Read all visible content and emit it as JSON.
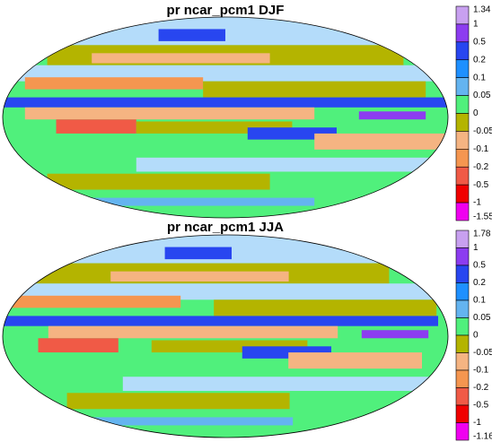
{
  "maps": [
    {
      "title": "pr ncar_pcm1 DJF",
      "colorbar": {
        "labels": [
          1.34,
          1,
          0.5,
          0.2,
          0.1,
          0.05,
          0,
          -0.05,
          -0.1,
          -0.2,
          -0.5,
          -1,
          -1.55
        ],
        "colors": [
          "#c8a0f0",
          "#8c3cf0",
          "#2846f0",
          "#1e90ff",
          "#64b4f0",
          "#b4dcfa",
          "#50f07c",
          "#b4b400",
          "#f5b482",
          "#f59650",
          "#f05a46",
          "#f00000",
          "#f000f0"
        ]
      }
    },
    {
      "title": "pr ncar_pcm1 JJA",
      "colorbar": {
        "labels": [
          1.78,
          1,
          0.5,
          0.2,
          0.1,
          0.05,
          0,
          -0.05,
          -0.1,
          -0.2,
          -0.5,
          -1,
          -1.16
        ],
        "colors": [
          "#c8a0f0",
          "#8c3cf0",
          "#2846f0",
          "#1e90ff",
          "#64b4f0",
          "#b4dcfa",
          "#50f07c",
          "#b4b400",
          "#f5b482",
          "#f59650",
          "#f05a46",
          "#f00000",
          "#f000f0"
        ]
      }
    }
  ]
}
